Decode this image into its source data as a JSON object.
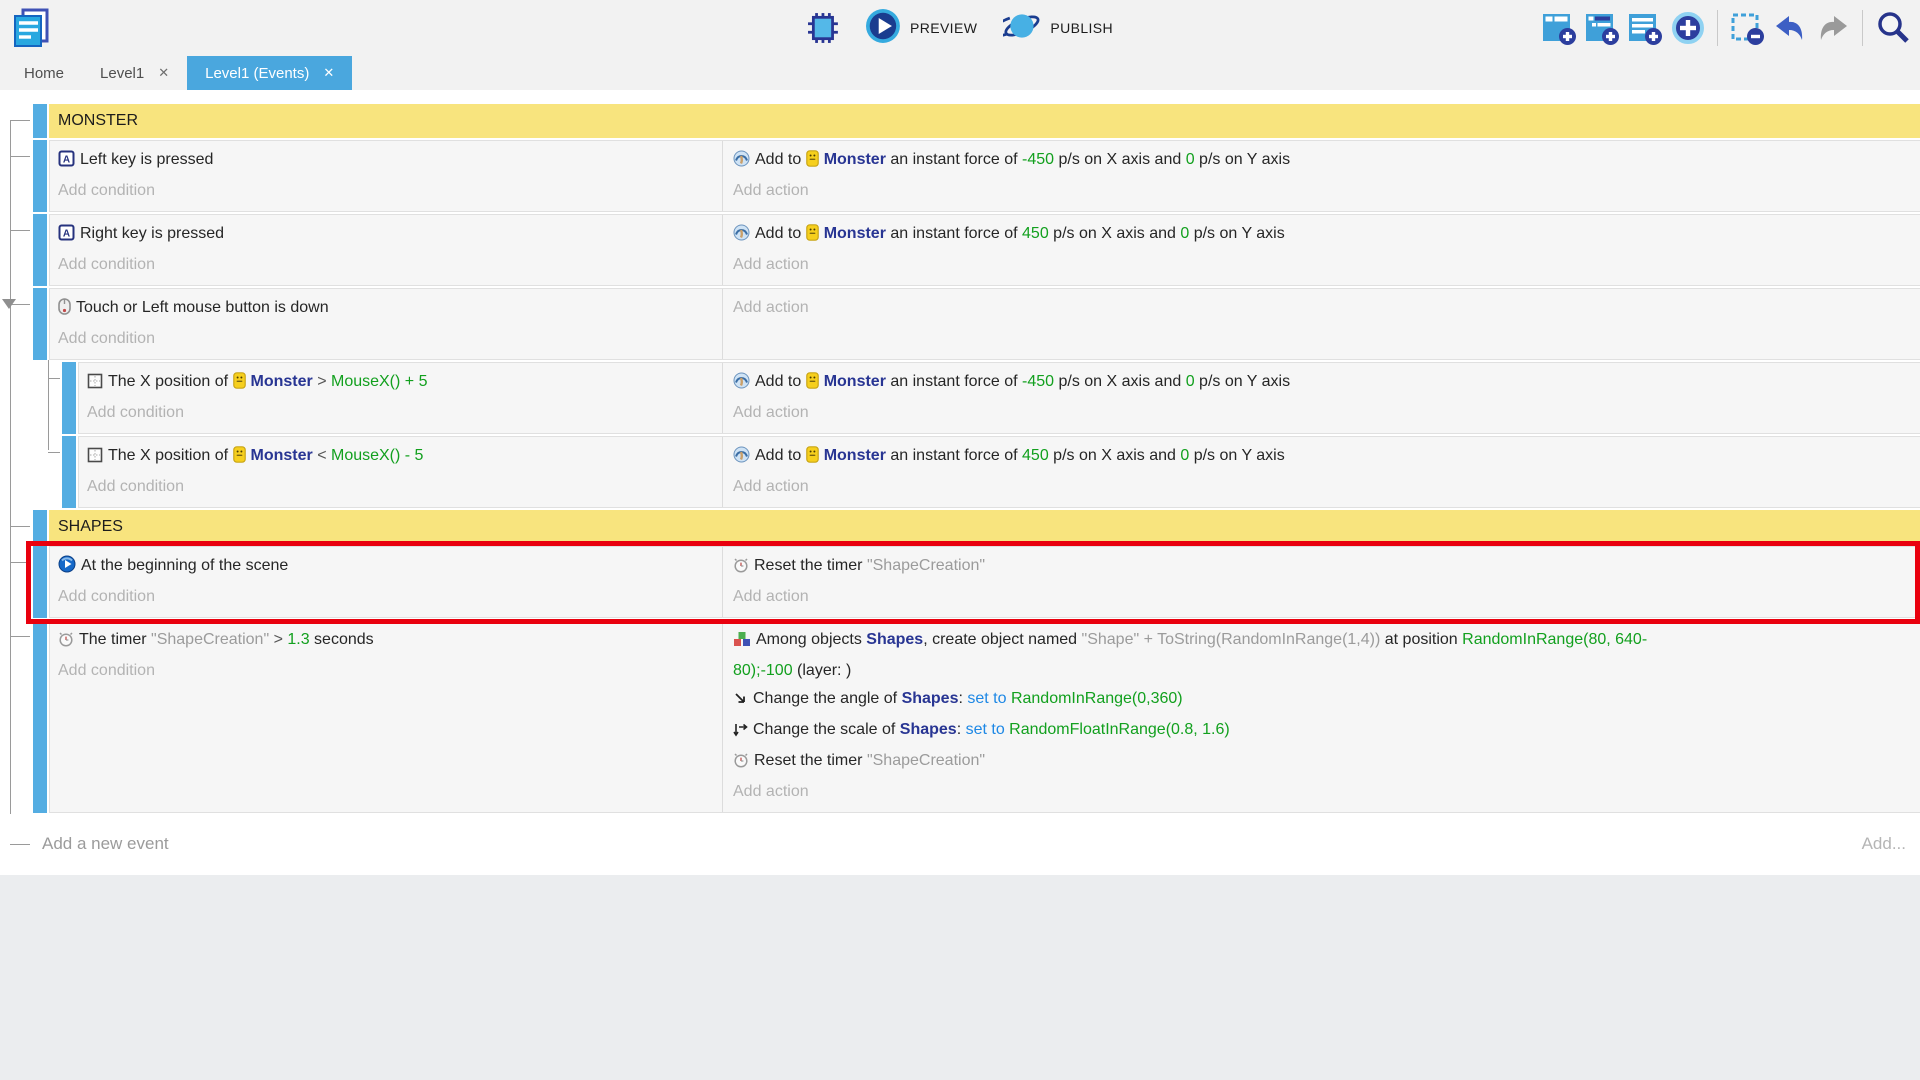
{
  "toolbar": {
    "preview_label": "PREVIEW",
    "publish_label": "PUBLISH",
    "right_icons": [
      "add-event",
      "add-subevent",
      "add-comment",
      "add-circle",
      "separator",
      "delete-selection",
      "undo",
      "redo",
      "separator",
      "search"
    ]
  },
  "tabs": [
    {
      "label": "Home",
      "closable": false,
      "active": false
    },
    {
      "label": "Level1",
      "closable": true,
      "active": false
    },
    {
      "label": "Level1 (Events)",
      "closable": true,
      "active": true
    }
  ],
  "colors": {
    "accent_blue": "#4AA7DE",
    "group_yellow": "#F8E47E",
    "expression_green": "#12A01E",
    "object_blue": "#283593",
    "set_to_blue": "#1E88E5",
    "highlight_red": "#E9000E"
  },
  "sheet": {
    "rows": [
      {
        "type": "group",
        "label": "MONSTER"
      },
      {
        "type": "event",
        "indent": 0,
        "conditions": [
          {
            "segments": [
              {
                "kind": "icon",
                "name": "keyboard-key"
              },
              {
                "kind": "text",
                "text": "Left key is pressed"
              }
            ]
          }
        ],
        "condition_placeholder": "Add condition",
        "actions": [
          {
            "segments": [
              {
                "kind": "icon",
                "name": "add-force"
              },
              {
                "kind": "text",
                "text": "Add to "
              },
              {
                "kind": "icon",
                "name": "monster-object"
              },
              {
                "kind": "object",
                "text": "Monster"
              },
              {
                "kind": "text",
                "text": " an instant force of "
              },
              {
                "kind": "expr",
                "text": "-450"
              },
              {
                "kind": "text",
                "text": " p/s on X axis and "
              },
              {
                "kind": "expr",
                "text": "0"
              },
              {
                "kind": "text",
                "text": " p/s on Y axis"
              }
            ]
          }
        ],
        "action_placeholder": "Add action"
      },
      {
        "type": "event",
        "indent": 0,
        "conditions": [
          {
            "segments": [
              {
                "kind": "icon",
                "name": "keyboard-key"
              },
              {
                "kind": "text",
                "text": "Right key is pressed"
              }
            ]
          }
        ],
        "condition_placeholder": "Add condition",
        "actions": [
          {
            "segments": [
              {
                "kind": "icon",
                "name": "add-force"
              },
              {
                "kind": "text",
                "text": "Add to "
              },
              {
                "kind": "icon",
                "name": "monster-object"
              },
              {
                "kind": "object",
                "text": "Monster"
              },
              {
                "kind": "text",
                "text": " an instant force of "
              },
              {
                "kind": "expr",
                "text": "450"
              },
              {
                "kind": "text",
                "text": " p/s on X axis and "
              },
              {
                "kind": "expr",
                "text": "0"
              },
              {
                "kind": "text",
                "text": " p/s on Y axis"
              }
            ]
          }
        ],
        "action_placeholder": "Add action"
      },
      {
        "type": "event",
        "indent": 0,
        "collapser": true,
        "conditions": [
          {
            "segments": [
              {
                "kind": "icon",
                "name": "mouse"
              },
              {
                "kind": "text",
                "text": "Touch or Left mouse button is down"
              }
            ]
          }
        ],
        "condition_placeholder": "Add condition",
        "actions": [],
        "action_placeholder": "Add action"
      },
      {
        "type": "subgroup",
        "rows": [
          {
            "type": "event",
            "indent": 1,
            "conditions": [
              {
                "segments": [
                  {
                    "kind": "icon",
                    "name": "position"
                  },
                  {
                    "kind": "text",
                    "text": "The X position of "
                  },
                  {
                    "kind": "icon",
                    "name": "monster-object"
                  },
                  {
                    "kind": "object",
                    "text": "Monster"
                  },
                  {
                    "kind": "op",
                    "text": " > "
                  },
                  {
                    "kind": "expr",
                    "text": "MouseX() + 5"
                  }
                ]
              }
            ],
            "condition_placeholder": "Add condition",
            "actions": [
              {
                "segments": [
                  {
                    "kind": "icon",
                    "name": "add-force"
                  },
                  {
                    "kind": "text",
                    "text": "Add to "
                  },
                  {
                    "kind": "icon",
                    "name": "monster-object"
                  },
                  {
                    "kind": "object",
                    "text": "Monster"
                  },
                  {
                    "kind": "text",
                    "text": " an instant force of "
                  },
                  {
                    "kind": "expr",
                    "text": "-450"
                  },
                  {
                    "kind": "text",
                    "text": " p/s on X axis and "
                  },
                  {
                    "kind": "expr",
                    "text": "0"
                  },
                  {
                    "kind": "text",
                    "text": " p/s on Y axis"
                  }
                ]
              }
            ],
            "action_placeholder": "Add action"
          },
          {
            "type": "event",
            "indent": 1,
            "conditions": [
              {
                "segments": [
                  {
                    "kind": "icon",
                    "name": "position"
                  },
                  {
                    "kind": "text",
                    "text": "The X position of "
                  },
                  {
                    "kind": "icon",
                    "name": "monster-object"
                  },
                  {
                    "kind": "object",
                    "text": "Monster"
                  },
                  {
                    "kind": "op",
                    "text": " < "
                  },
                  {
                    "kind": "expr",
                    "text": "MouseX() - 5"
                  }
                ]
              }
            ],
            "condition_placeholder": "Add condition",
            "actions": [
              {
                "segments": [
                  {
                    "kind": "icon",
                    "name": "add-force"
                  },
                  {
                    "kind": "text",
                    "text": "Add to "
                  },
                  {
                    "kind": "icon",
                    "name": "monster-object"
                  },
                  {
                    "kind": "object",
                    "text": "Monster"
                  },
                  {
                    "kind": "text",
                    "text": " an instant force of "
                  },
                  {
                    "kind": "expr",
                    "text": "450"
                  },
                  {
                    "kind": "text",
                    "text": " p/s on X axis and "
                  },
                  {
                    "kind": "expr",
                    "text": "0"
                  },
                  {
                    "kind": "text",
                    "text": " p/s on Y axis"
                  }
                ]
              }
            ],
            "action_placeholder": "Add action"
          }
        ]
      },
      {
        "type": "group",
        "label": "SHAPES"
      },
      {
        "type": "event",
        "indent": 0,
        "highlight": true,
        "conditions": [
          {
            "segments": [
              {
                "kind": "icon",
                "name": "scene-begin"
              },
              {
                "kind": "text",
                "text": "At the beginning of the scene"
              }
            ]
          }
        ],
        "condition_placeholder": "Add condition",
        "actions": [
          {
            "segments": [
              {
                "kind": "icon",
                "name": "timer"
              },
              {
                "kind": "text",
                "text": "Reset the timer "
              },
              {
                "kind": "str",
                "text": "\"ShapeCreation\""
              }
            ]
          }
        ],
        "action_placeholder": "Add action"
      },
      {
        "type": "event",
        "indent": 0,
        "conditions": [
          {
            "segments": [
              {
                "kind": "icon",
                "name": "timer"
              },
              {
                "kind": "text",
                "text": "The timer "
              },
              {
                "kind": "str",
                "text": "\"ShapeCreation\""
              },
              {
                "kind": "op",
                "text": " > "
              },
              {
                "kind": "expr",
                "text": "1.3"
              },
              {
                "kind": "text",
                "text": " seconds"
              }
            ]
          }
        ],
        "condition_placeholder": "Add condition",
        "actions": [
          {
            "segments": [
              {
                "kind": "icon",
                "name": "create-object"
              },
              {
                "kind": "text",
                "text": "Among objects "
              },
              {
                "kind": "object",
                "text": "Shapes"
              },
              {
                "kind": "text",
                "text": ", create object named "
              },
              {
                "kind": "str",
                "text": "\"Shape\" + ToString(RandomInRange(1,4))"
              },
              {
                "kind": "text",
                "text": " at position "
              },
              {
                "kind": "expr",
                "text": "RandomInRange(80, 640-"
              },
              {
                "kind": "br"
              },
              {
                "kind": "expr",
                "text": "80);-100"
              },
              {
                "kind": "text",
                "text": " (layer: )"
              }
            ]
          },
          {
            "segments": [
              {
                "kind": "icon",
                "name": "angle"
              },
              {
                "kind": "text",
                "text": "Change the angle of "
              },
              {
                "kind": "object",
                "text": "Shapes"
              },
              {
                "kind": "text",
                "text": ": "
              },
              {
                "kind": "setto",
                "text": "set to "
              },
              {
                "kind": "expr",
                "text": "RandomInRange(0,360)"
              }
            ]
          },
          {
            "segments": [
              {
                "kind": "icon",
                "name": "scale"
              },
              {
                "kind": "text",
                "text": "Change the scale of "
              },
              {
                "kind": "object",
                "text": "Shapes"
              },
              {
                "kind": "text",
                "text": ": "
              },
              {
                "kind": "setto",
                "text": "set to "
              },
              {
                "kind": "expr",
                "text": "RandomFloatInRange(0.8, 1.6)"
              }
            ]
          },
          {
            "segments": [
              {
                "kind": "icon",
                "name": "timer"
              },
              {
                "kind": "text",
                "text": "Reset the timer "
              },
              {
                "kind": "str",
                "text": "\"ShapeCreation\""
              }
            ]
          }
        ],
        "action_placeholder": "Add action"
      }
    ],
    "footer_left": "Add a new event",
    "footer_right": "Add..."
  }
}
